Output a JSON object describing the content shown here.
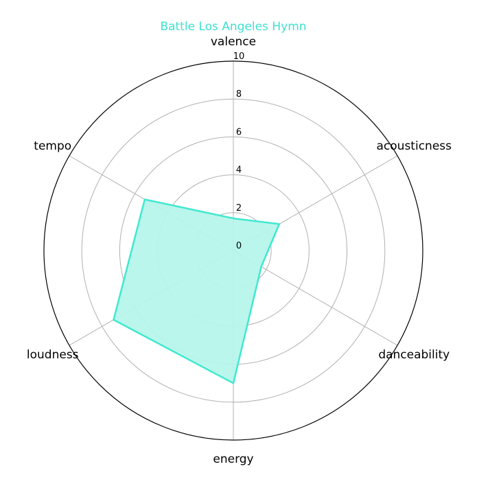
{
  "chart_data": {
    "type": "radar",
    "title": "Battle Los Angeles Hymn",
    "title_color": "#40e0d0",
    "series_color": "#40e8d0",
    "fill_color": "#b6f5ea",
    "axes": [
      "valence",
      "acousticness",
      "danceability",
      "energy",
      "loudness",
      "tempo"
    ],
    "values": [
      1.7,
      2.8,
      1.7,
      7.0,
      7.3,
      5.4
    ],
    "rlim": [
      0,
      10
    ],
    "ticks": [
      0,
      2,
      4,
      6,
      8,
      10
    ],
    "tick_labels": [
      "0",
      "2",
      "4",
      "6",
      "8",
      "10"
    ],
    "grid": true
  }
}
